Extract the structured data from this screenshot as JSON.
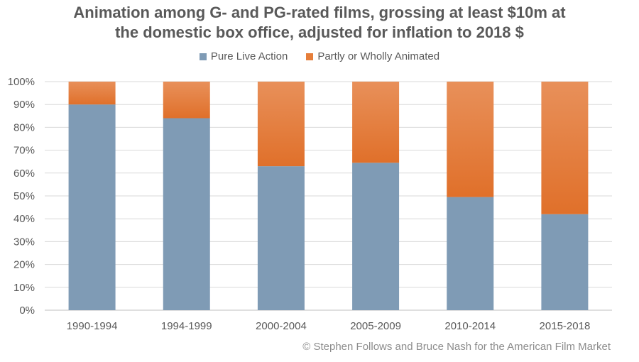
{
  "chart_data": {
    "type": "bar",
    "stacked": true,
    "title_lines": [
      "Animation among G- and PG-rated films, grossing at least $10m at",
      "the domestic box office, adjusted for inflation to 2018 $"
    ],
    "categories": [
      "1990-1994",
      "1994-1999",
      "2000-2004",
      "2005-2009",
      "2010-2014",
      "2015-2018"
    ],
    "series": [
      {
        "name": "Pure Live Action",
        "color": "#7f9bb5",
        "values": [
          90,
          84,
          63,
          64.5,
          49.5,
          42
        ]
      },
      {
        "name": "Partly or Wholly Animated",
        "color": "#e67e3a",
        "values": [
          10,
          16,
          37,
          35.5,
          50.5,
          58
        ]
      }
    ],
    "ylim": [
      0,
      100
    ],
    "yticks": [
      "0%",
      "10%",
      "20%",
      "30%",
      "40%",
      "50%",
      "60%",
      "70%",
      "80%",
      "90%",
      "100%"
    ],
    "grid": true,
    "legend_position": "top"
  },
  "credit": "© Stephen Follows and Bruce Nash for the American Film Market"
}
